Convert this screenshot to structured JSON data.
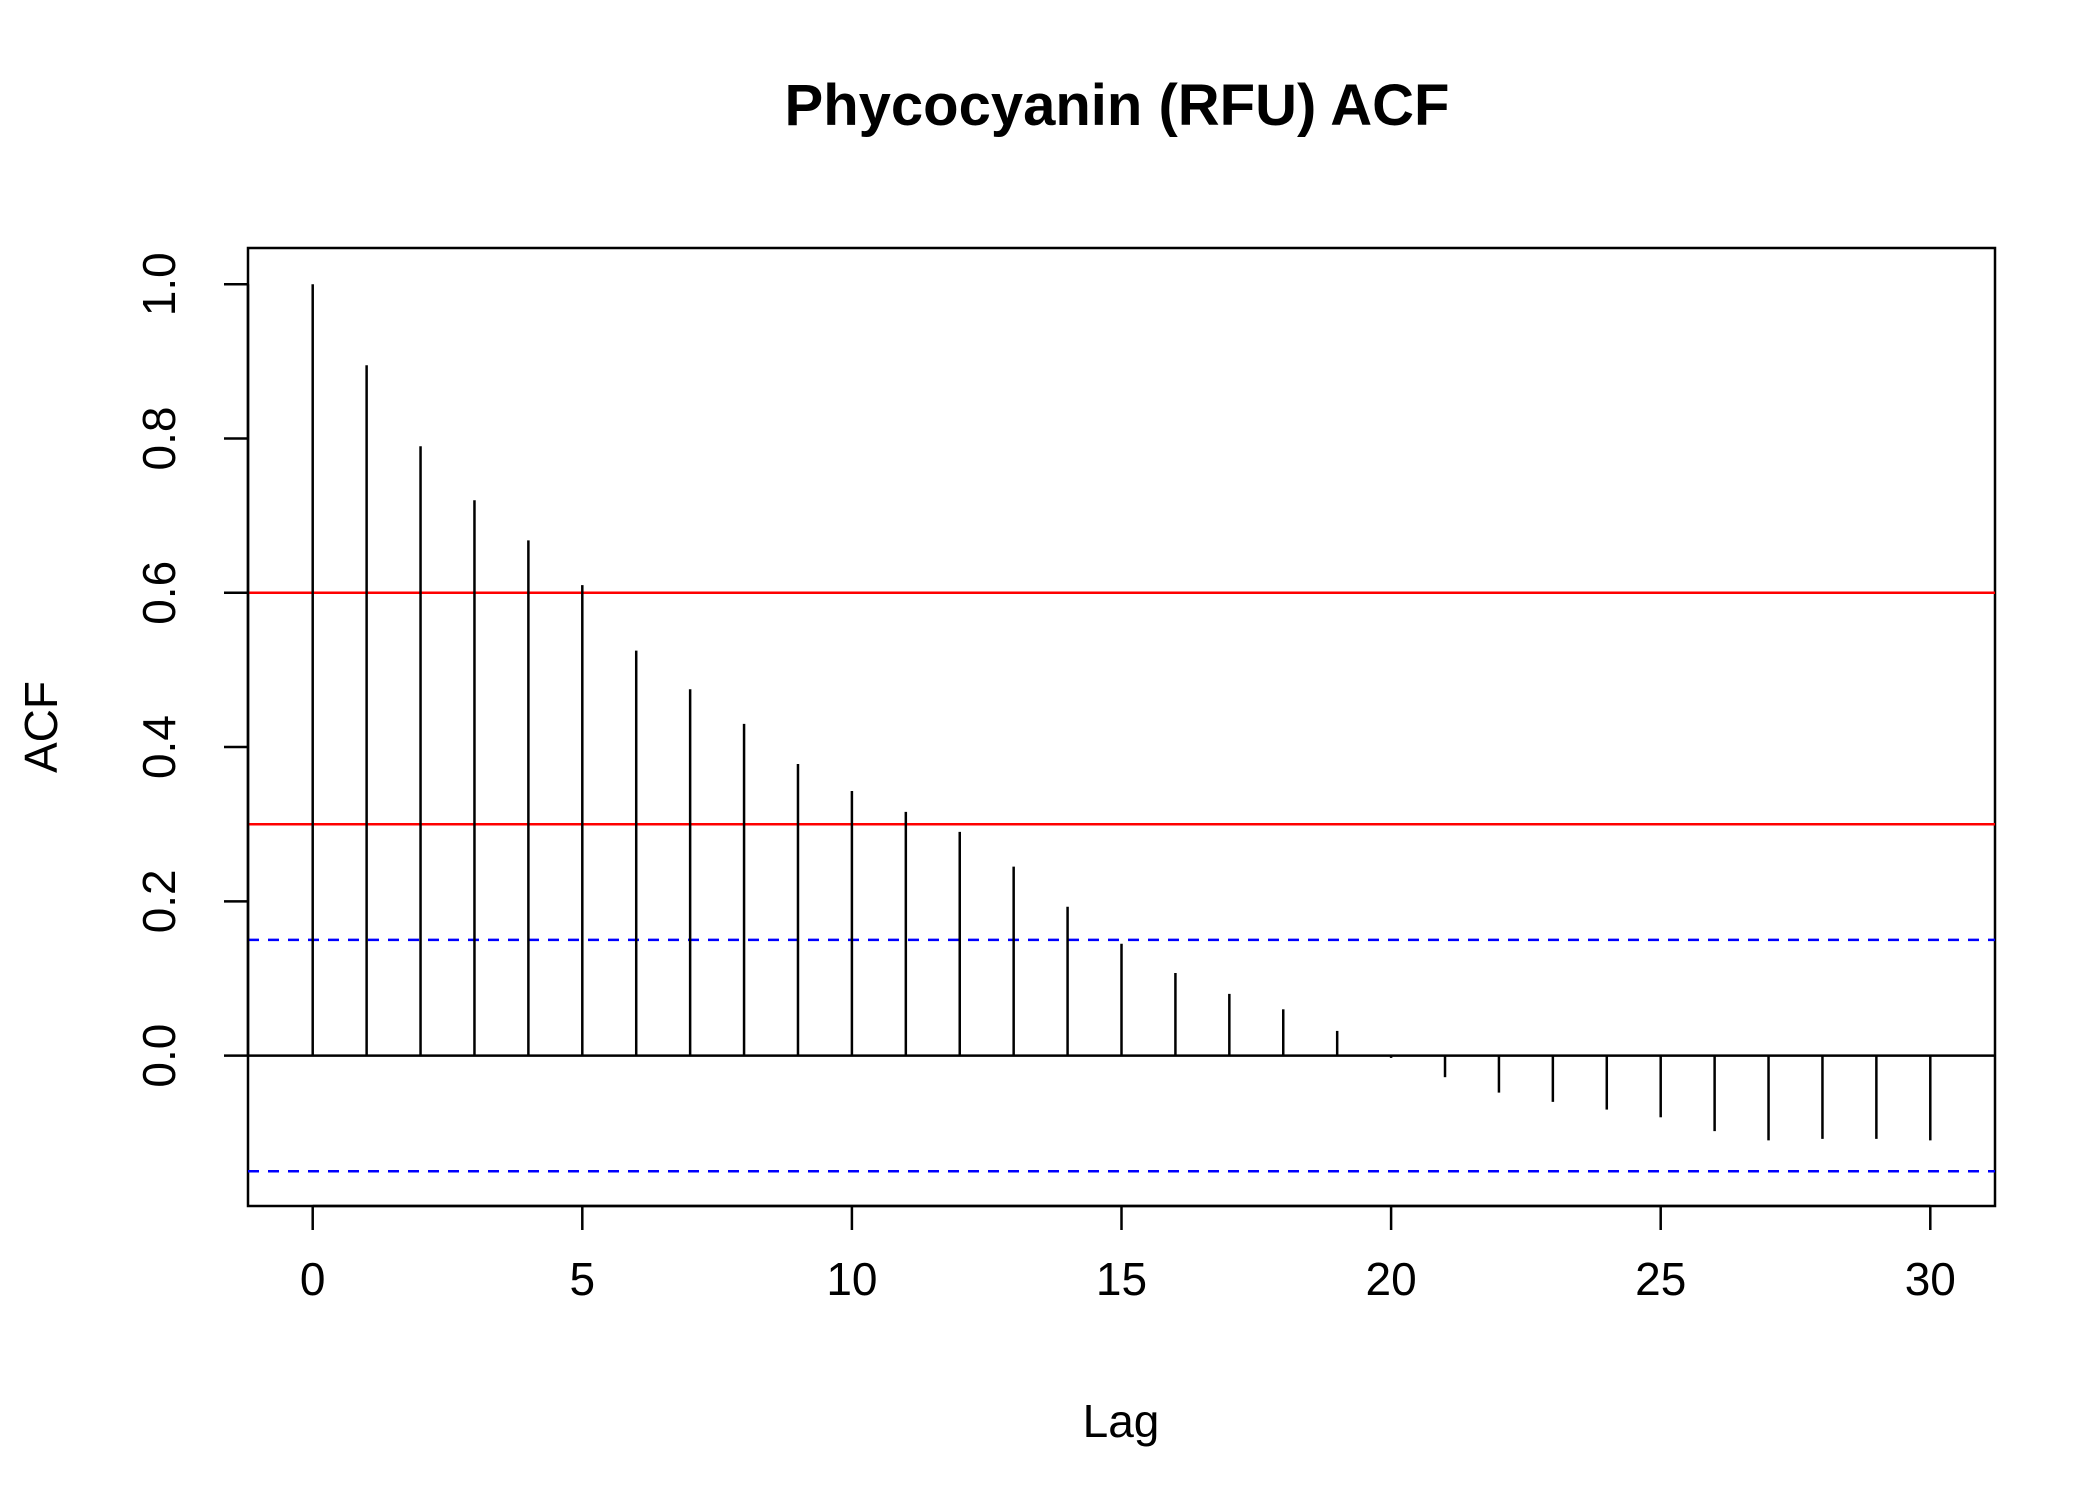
{
  "chart_data": {
    "type": "bar",
    "title": "Phycocyanin (RFU) ACF",
    "xlabel": "Lag",
    "ylabel": "ACF",
    "xlim": [
      -1.2,
      31.2
    ],
    "ylim": [
      -0.195,
      1.047
    ],
    "x_ticks": [
      0,
      5,
      10,
      15,
      20,
      25,
      30
    ],
    "x_tick_labels": [
      "0",
      "5",
      "10",
      "15",
      "20",
      "25",
      "30"
    ],
    "y_ticks": [
      0.0,
      0.2,
      0.4,
      0.6,
      0.8,
      1.0
    ],
    "y_tick_labels": [
      "0.0",
      "0.2",
      "0.4",
      "0.6",
      "0.8",
      "1.0"
    ],
    "lags": [
      0,
      1,
      2,
      3,
      4,
      5,
      6,
      7,
      8,
      9,
      10,
      11,
      12,
      13,
      14,
      15,
      16,
      17,
      18,
      19,
      20,
      21,
      22,
      23,
      24,
      25,
      26,
      27,
      28,
      29,
      30
    ],
    "values": [
      1.0,
      0.895,
      0.79,
      0.72,
      0.668,
      0.61,
      0.525,
      0.475,
      0.43,
      0.378,
      0.343,
      0.316,
      0.29,
      0.245,
      0.193,
      0.145,
      0.107,
      0.08,
      0.06,
      0.032,
      -0.003,
      -0.028,
      -0.048,
      -0.06,
      -0.07,
      -0.08,
      -0.098,
      -0.11,
      -0.108,
      -0.108,
      -0.11
    ],
    "confidence_bounds": [
      0.15,
      -0.15
    ],
    "reference_lines": [
      0.6,
      0.3
    ],
    "grid": false,
    "colors": {
      "bars": "#000000",
      "reference_lines": "#ff0000",
      "confidence_bounds": "#0000ff",
      "zero_line": "#000000"
    }
  }
}
